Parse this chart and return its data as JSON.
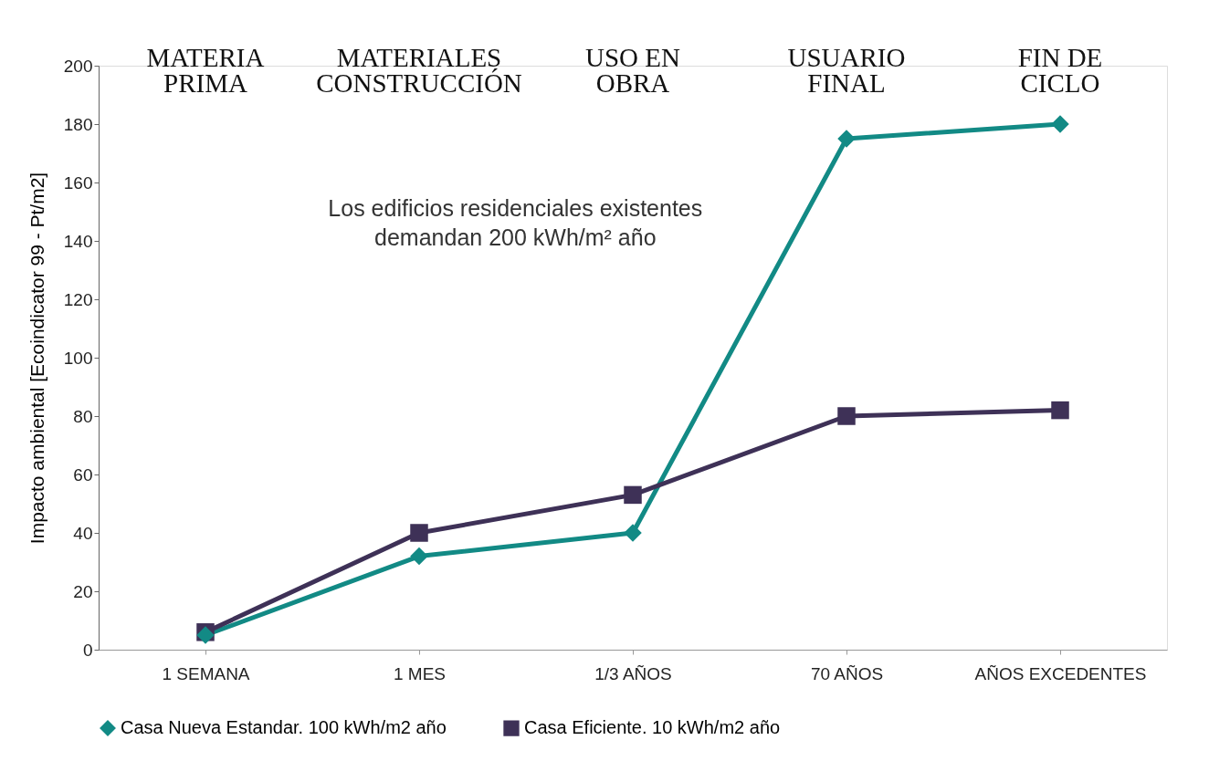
{
  "chart_data": {
    "type": "line",
    "ylabel": "Impacto ambiental [Ecoindicator 99 - Pt/m2]",
    "categories": [
      "1 SEMANA",
      "1 MES",
      "1/3 AÑOS",
      "70 AÑOS",
      "AÑOS EXCEDENTES"
    ],
    "series": [
      {
        "name": "Casa Nueva Estandar. 100 kWh/m2 año",
        "color": "#128a85",
        "marker": "diamond",
        "values": [
          5,
          32,
          40,
          175,
          180
        ]
      },
      {
        "name": "Casa Eficiente. 10 kWh/m2 año",
        "color": "#3e3157",
        "marker": "square",
        "values": [
          6,
          40,
          53,
          80,
          82
        ]
      }
    ],
    "ylim": [
      0,
      200
    ],
    "yticks": [
      0,
      20,
      40,
      60,
      80,
      100,
      120,
      140,
      160,
      180,
      200
    ],
    "grid": false,
    "legend": "bottom",
    "line_style": "solid",
    "annotations": [
      "MATERIA\nPRIMA",
      "MATERIALES\nCONSTRUCCIÓN",
      "USO EN\nOBRA",
      "USUARIO\nFINAL",
      "FIN DE\nCICLO",
      "Los edificios residenciales existentes\ndemandan 200 kWh/m² año"
    ]
  }
}
